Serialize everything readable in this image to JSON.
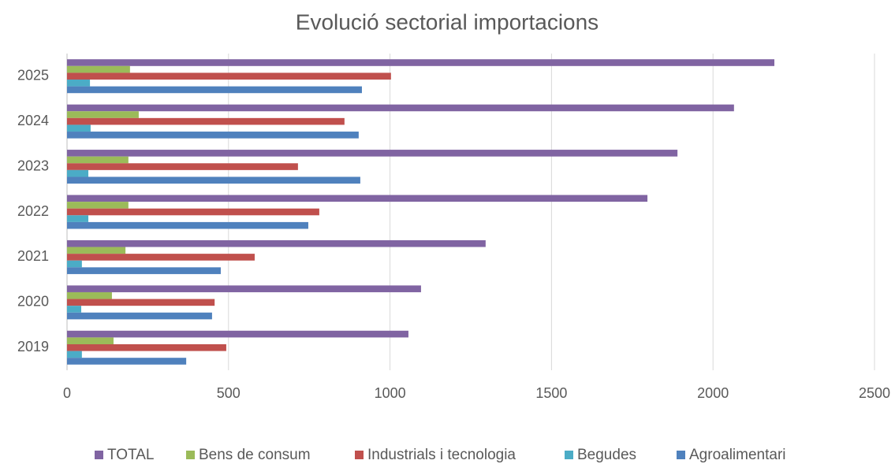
{
  "chart_data": {
    "type": "bar",
    "orientation": "horizontal",
    "title": "Evolució sectorial importacions",
    "categories": [
      "2019",
      "2020",
      "2021",
      "2022",
      "2023",
      "2024",
      "2025"
    ],
    "series": [
      {
        "name": "TOTAL",
        "color": "#8064a2",
        "values": [
          1057,
          1096,
          1296,
          1797,
          1890,
          2065,
          2190
        ]
      },
      {
        "name": "Bens de consum",
        "color": "#9bbb59",
        "values": [
          144,
          139,
          181,
          190,
          190,
          222,
          195
        ]
      },
      {
        "name": "Industrials i tecnologia",
        "color": "#c0504d",
        "values": [
          493,
          457,
          581,
          781,
          715,
          859,
          1003
        ]
      },
      {
        "name": "Begudes",
        "color": "#4bacc6",
        "values": [
          46,
          44,
          46,
          66,
          66,
          73,
          71
        ]
      },
      {
        "name": "Agroalimentari",
        "color": "#4f81bd",
        "values": [
          369,
          449,
          476,
          747,
          908,
          903,
          913
        ]
      }
    ],
    "xlim": [
      0,
      2500
    ],
    "xticks": [
      0,
      500,
      1000,
      1500,
      2000,
      2500
    ],
    "grid": true,
    "legend": "bottom"
  }
}
